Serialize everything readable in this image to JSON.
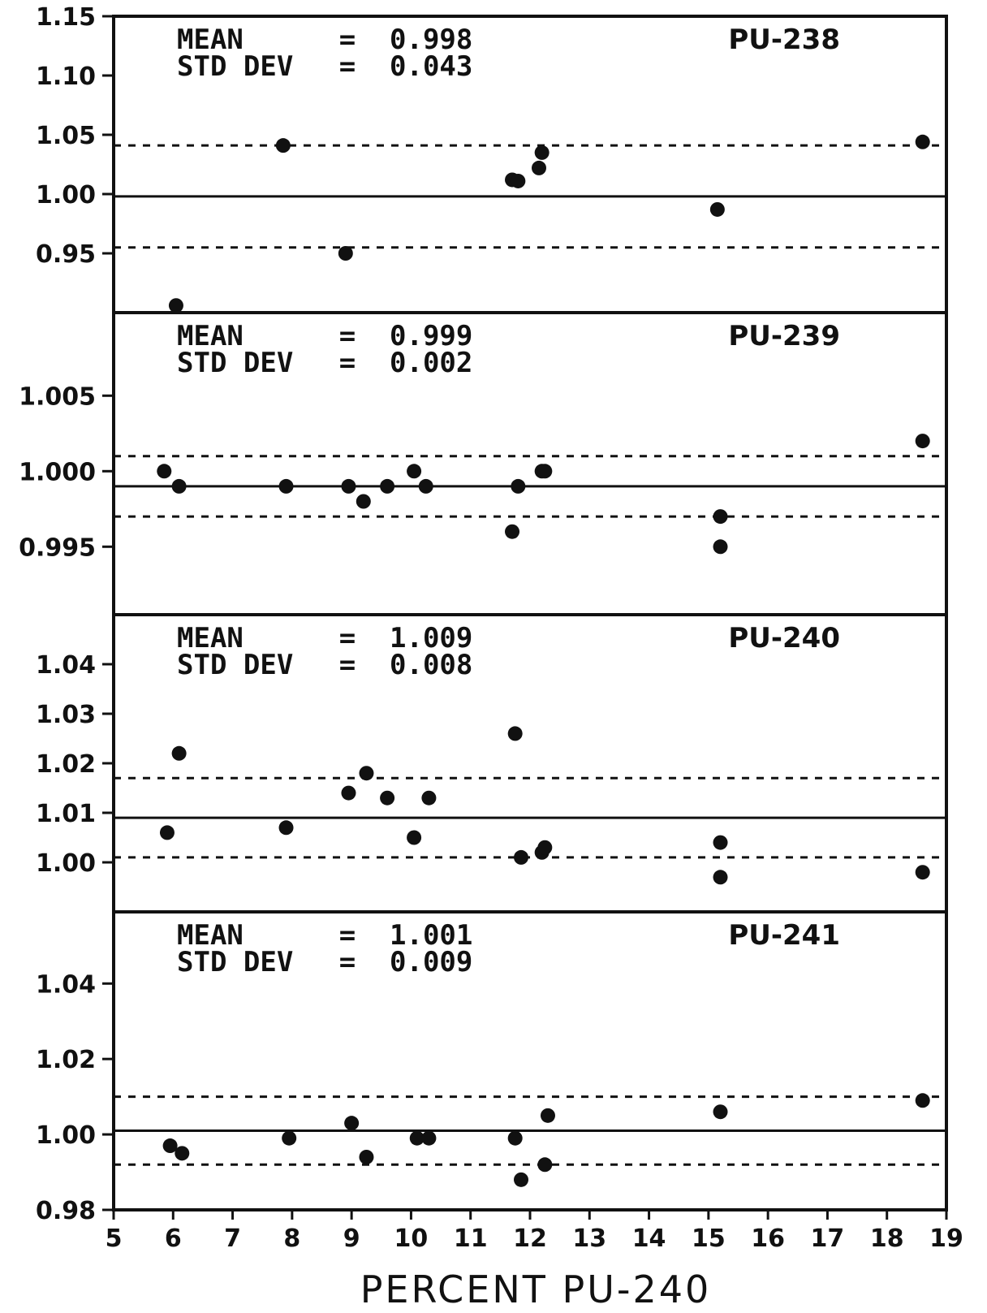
{
  "chart_data": {
    "type": "scatter",
    "xlabel": "PERCENT PU-240",
    "x_ticks": [
      "5",
      "6",
      "7",
      "8",
      "9",
      "10",
      "11",
      "12",
      "13",
      "14",
      "15",
      "16",
      "17",
      "18",
      "19"
    ],
    "xlim": [
      5,
      19
    ],
    "panels": [
      {
        "isotope": "PU-238",
        "mean_label": "MEAN",
        "mean_eq": "=",
        "mean": "0.998",
        "std_label": "STD DEV",
        "std_eq": "=",
        "std": "0.043",
        "ylim": [
          0.9,
          1.15
        ],
        "y_ticks": [
          "1.15",
          "1.10",
          "1.05",
          "1.00",
          "0.95"
        ],
        "y_tick_values": [
          1.15,
          1.1,
          1.05,
          1.0,
          0.95
        ],
        "mean_line": 0.998,
        "band": [
          0.955,
          1.041
        ],
        "points": [
          [
            6.05,
            0.906
          ],
          [
            7.85,
            1.041
          ],
          [
            8.9,
            0.95
          ],
          [
            11.7,
            1.012
          ],
          [
            11.8,
            1.011
          ],
          [
            12.15,
            1.022
          ],
          [
            12.2,
            1.035
          ],
          [
            15.15,
            0.987
          ],
          [
            18.6,
            1.044
          ]
        ]
      },
      {
        "isotope": "PU-239",
        "mean_label": "MEAN",
        "mean_eq": "=",
        "mean": "0.999",
        "std_label": "STD DEV",
        "std_eq": "=",
        "std": "0.002",
        "ylim": [
          0.9905,
          1.0105
        ],
        "y_ticks": [
          "1.005",
          "1.000",
          "0.995"
        ],
        "y_tick_values": [
          1.005,
          1.0,
          0.995
        ],
        "mean_line": 0.999,
        "band": [
          0.997,
          1.001
        ],
        "points": [
          [
            5.85,
            1.0
          ],
          [
            6.1,
            0.999
          ],
          [
            7.9,
            0.999
          ],
          [
            8.95,
            0.999
          ],
          [
            9.2,
            0.998
          ],
          [
            9.6,
            0.999
          ],
          [
            10.05,
            1.0
          ],
          [
            10.25,
            0.999
          ],
          [
            11.7,
            0.996
          ],
          [
            11.8,
            0.999
          ],
          [
            12.2,
            1.0
          ],
          [
            12.25,
            1.0
          ],
          [
            15.2,
            0.997
          ],
          [
            15.2,
            0.995
          ],
          [
            18.6,
            1.002
          ]
        ]
      },
      {
        "isotope": "PU-240",
        "mean_label": "MEAN",
        "mean_eq": "=",
        "mean": "1.009",
        "std_label": "STD DEV",
        "std_eq": "=",
        "std": "0.008",
        "ylim": [
          0.99,
          1.05
        ],
        "y_ticks": [
          "1.04",
          "1.03",
          "1.02",
          "1.01",
          "1.00"
        ],
        "y_tick_values": [
          1.04,
          1.03,
          1.02,
          1.01,
          1.0
        ],
        "mean_line": 1.009,
        "band": [
          1.001,
          1.017
        ],
        "points": [
          [
            5.9,
            1.006
          ],
          [
            6.1,
            1.022
          ],
          [
            7.9,
            1.007
          ],
          [
            8.95,
            1.014
          ],
          [
            9.25,
            1.018
          ],
          [
            9.6,
            1.013
          ],
          [
            10.05,
            1.005
          ],
          [
            10.3,
            1.013
          ],
          [
            11.75,
            1.026
          ],
          [
            11.85,
            1.001
          ],
          [
            12.2,
            1.002
          ],
          [
            12.25,
            1.003
          ],
          [
            15.2,
            1.004
          ],
          [
            15.2,
            0.997
          ],
          [
            18.6,
            0.998
          ]
        ]
      },
      {
        "isotope": "PU-241",
        "mean_label": "MEAN",
        "mean_eq": "=",
        "mean": "1.001",
        "std_label": "STD DEV",
        "std_eq": "=",
        "std": "0.009",
        "ylim": [
          0.98,
          1.059
        ],
        "y_ticks": [
          "1.04",
          "1.02",
          "1.00",
          "0.98"
        ],
        "y_tick_values": [
          1.04,
          1.02,
          1.0,
          0.98
        ],
        "mean_line": 1.001,
        "band": [
          0.992,
          1.01
        ],
        "points": [
          [
            5.95,
            0.997
          ],
          [
            6.15,
            0.995
          ],
          [
            7.95,
            0.999
          ],
          [
            9.0,
            1.003
          ],
          [
            9.25,
            0.994
          ],
          [
            10.1,
            0.999
          ],
          [
            10.3,
            0.999
          ],
          [
            11.75,
            0.999
          ],
          [
            11.85,
            0.988
          ],
          [
            12.25,
            0.992
          ],
          [
            12.3,
            1.005
          ],
          [
            15.2,
            1.006
          ],
          [
            18.6,
            1.009
          ]
        ]
      }
    ]
  }
}
